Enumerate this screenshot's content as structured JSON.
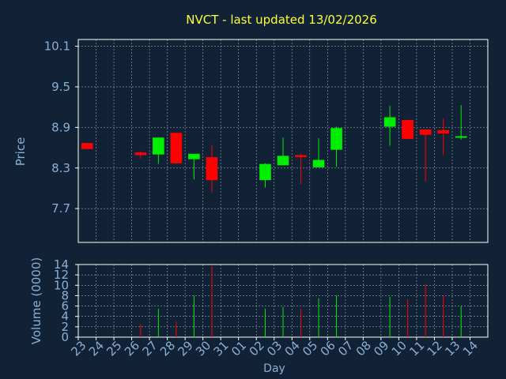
{
  "chart_data": {
    "type": "candlestick",
    "title": "NVCT - last updated 13/02/2026",
    "xlabel": "Day",
    "price_ylabel": "Price",
    "volume_ylabel": "Volume (0000)",
    "price_ylim": [
      7.2,
      10.2
    ],
    "price_yticks": [
      "7.7",
      "8.3",
      "8.9",
      "9.5",
      "10.1"
    ],
    "price_ytick_values": [
      7.7,
      8.3,
      8.9,
      9.5,
      10.1
    ],
    "volume_ylim": [
      0,
      14
    ],
    "volume_yticks": [
      "0",
      "2",
      "4",
      "6",
      "8",
      "10",
      "12",
      "14"
    ],
    "volume_ytick_values": [
      0,
      2,
      4,
      6,
      8,
      10,
      12,
      14
    ],
    "x_labels": [
      "23",
      "24",
      "25",
      "26",
      "27",
      "28",
      "29",
      "30",
      "31",
      "01",
      "02",
      "03",
      "04",
      "05",
      "06",
      "07",
      "08",
      "09",
      "10",
      "11",
      "12",
      "13",
      "14"
    ],
    "candles": [
      {
        "day": "23",
        "open": 8.67,
        "high": 8.67,
        "low": 8.58,
        "close": 8.58
      },
      {
        "day": "26",
        "open": 8.53,
        "high": 8.55,
        "low": 8.44,
        "close": 8.49
      },
      {
        "day": "27",
        "open": 8.5,
        "high": 8.75,
        "low": 8.36,
        "close": 8.75
      },
      {
        "day": "28",
        "open": 8.82,
        "high": 8.82,
        "low": 8.36,
        "close": 8.37
      },
      {
        "day": "29",
        "open": 8.43,
        "high": 8.51,
        "low": 8.13,
        "close": 8.51
      },
      {
        "day": "30",
        "open": 8.46,
        "high": 8.64,
        "low": 7.94,
        "close": 8.12
      },
      {
        "day": "02",
        "open": 8.12,
        "high": 8.37,
        "low": 8.01,
        "close": 8.36
      },
      {
        "day": "03",
        "open": 8.34,
        "high": 8.75,
        "low": 8.34,
        "close": 8.48
      },
      {
        "day": "04",
        "open": 8.49,
        "high": 8.51,
        "low": 8.06,
        "close": 8.46
      },
      {
        "day": "05",
        "open": 8.31,
        "high": 8.74,
        "low": 8.31,
        "close": 8.42
      },
      {
        "day": "06",
        "open": 8.57,
        "high": 8.91,
        "low": 8.32,
        "close": 8.89
      },
      {
        "day": "09",
        "open": 8.91,
        "high": 9.22,
        "low": 8.63,
        "close": 9.05
      },
      {
        "day": "10",
        "open": 9.01,
        "high": 9.01,
        "low": 8.73,
        "close": 8.73
      },
      {
        "day": "11",
        "open": 8.87,
        "high": 8.87,
        "low": 8.1,
        "close": 8.79
      },
      {
        "day": "12",
        "open": 8.86,
        "high": 9.03,
        "low": 8.49,
        "close": 8.81
      },
      {
        "day": "13",
        "open": 8.75,
        "high": 9.23,
        "low": 8.72,
        "close": 8.77
      }
    ],
    "volume": [
      {
        "day": "26",
        "value": 2.5,
        "dir": "down"
      },
      {
        "day": "27",
        "value": 5.5,
        "dir": "up"
      },
      {
        "day": "28",
        "value": 3.0,
        "dir": "down"
      },
      {
        "day": "29",
        "value": 8.0,
        "dir": "up"
      },
      {
        "day": "30",
        "value": 13.7,
        "dir": "down"
      },
      {
        "day": "02",
        "value": 5.5,
        "dir": "up"
      },
      {
        "day": "03",
        "value": 5.8,
        "dir": "up"
      },
      {
        "day": "04",
        "value": 5.5,
        "dir": "down"
      },
      {
        "day": "05",
        "value": 7.5,
        "dir": "up"
      },
      {
        "day": "06",
        "value": 8.0,
        "dir": "up"
      },
      {
        "day": "09",
        "value": 7.8,
        "dir": "up"
      },
      {
        "day": "10",
        "value": 7.3,
        "dir": "down"
      },
      {
        "day": "11",
        "value": 10.2,
        "dir": "down"
      },
      {
        "day": "12",
        "value": 8.0,
        "dir": "down"
      },
      {
        "day": "13",
        "value": 6.0,
        "dir": "up"
      }
    ],
    "grid": true,
    "colors": {
      "up": "#00ee00",
      "down": "#ff0000",
      "background": "#112236",
      "axis": "#ffffff",
      "text": "#8ab0d6",
      "title": "#ffff33"
    }
  }
}
